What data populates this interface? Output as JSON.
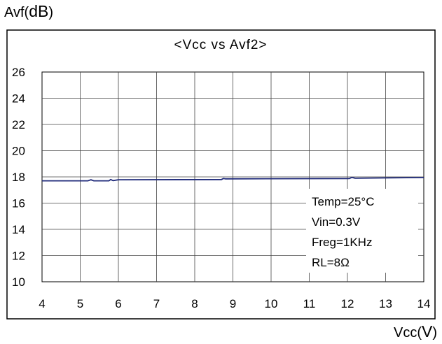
{
  "chart_data": {
    "type": "line",
    "title": "<Vcc vs Avf2>",
    "xlabel_prefix": "Vcc(",
    "xlabel_unit": "V",
    "xlabel_suffix": ")",
    "ylabel_prefix": "Avf(",
    "ylabel_unit": "dB",
    "ylabel_suffix": ")",
    "xlim": [
      4,
      14
    ],
    "ylim": [
      10,
      26
    ],
    "x_ticks": [
      "4",
      "5",
      "6",
      "7",
      "8",
      "9",
      "10",
      "11",
      "12",
      "13",
      "14"
    ],
    "y_ticks": [
      "10",
      "12",
      "14",
      "16",
      "18",
      "20",
      "22",
      "24",
      "26"
    ],
    "grid": true,
    "line_color": "#1f2a7a",
    "series": [
      {
        "x": [
          4.0,
          5.2,
          5.28,
          5.36,
          5.75,
          5.8,
          5.86,
          6.0,
          8.7,
          8.75,
          8.8,
          12.05,
          12.12,
          12.2,
          14.0
        ],
        "y": [
          17.7,
          17.7,
          17.78,
          17.7,
          17.7,
          17.8,
          17.72,
          17.78,
          17.8,
          17.88,
          17.85,
          17.88,
          17.96,
          17.9,
          17.95
        ]
      }
    ],
    "annotation": {
      "lines": [
        "Temp=25°C",
        "Vin=0.3V",
        "Freg=1KHz",
        "RL=8Ω"
      ]
    }
  }
}
